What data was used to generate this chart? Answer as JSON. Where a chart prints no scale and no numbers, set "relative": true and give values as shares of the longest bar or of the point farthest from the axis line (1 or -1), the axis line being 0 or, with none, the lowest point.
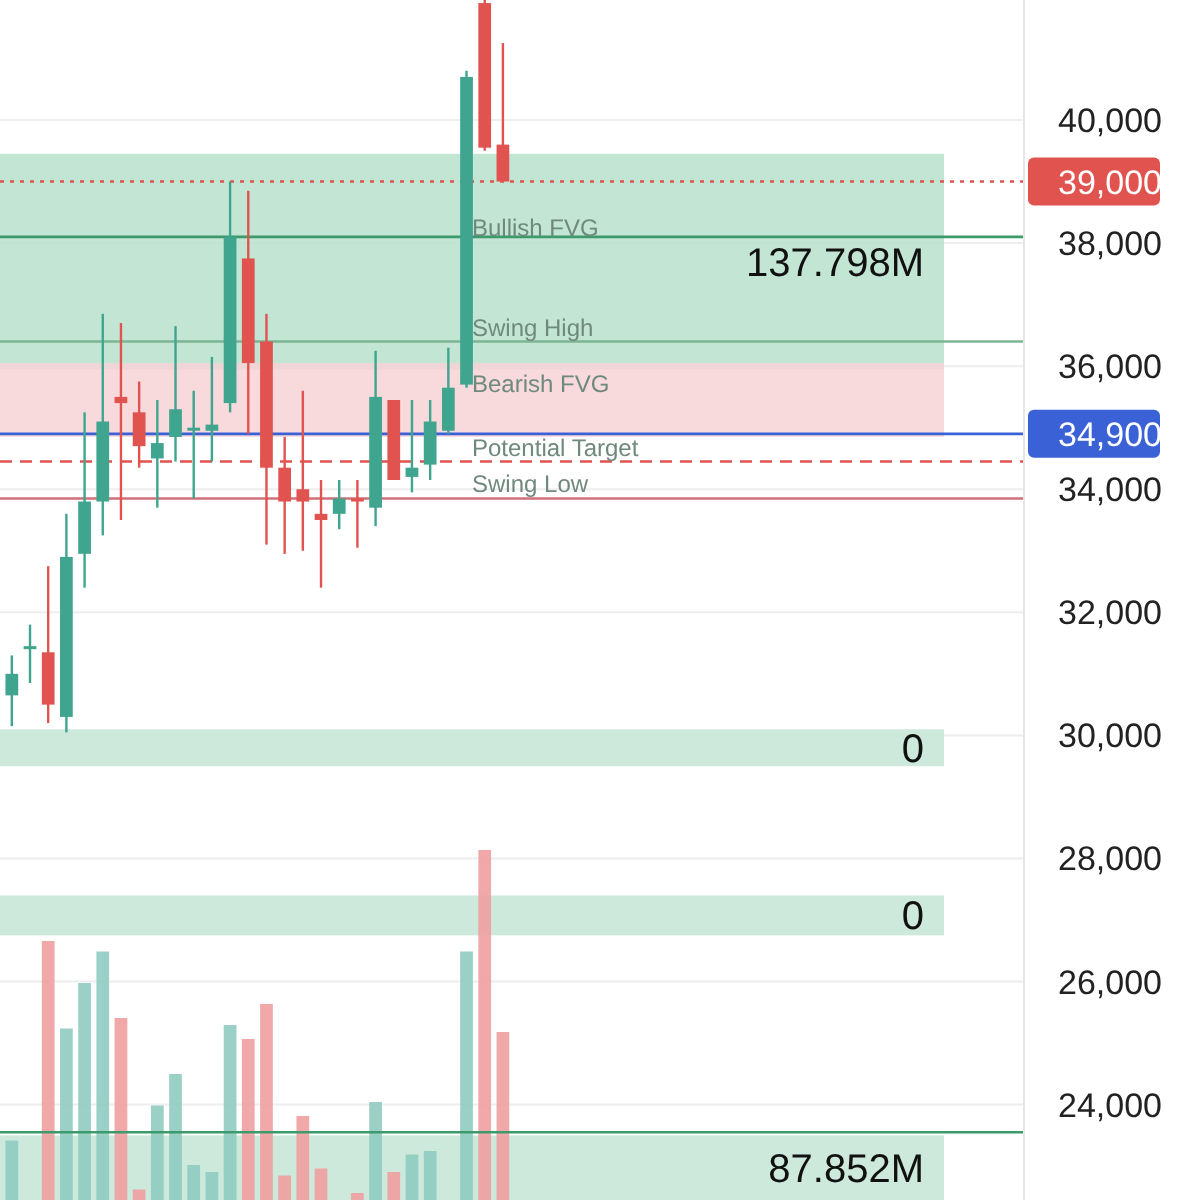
{
  "chart_data": [
    {
      "type": "candlestick",
      "categories": [
        null,
        null,
        null,
        null,
        null,
        null,
        null,
        null,
        null,
        null,
        null,
        null,
        null,
        null,
        null,
        null,
        null,
        null,
        null,
        null,
        null,
        null,
        null,
        null,
        null,
        null,
        null,
        null,
        null,
        null,
        null,
        null,
        null,
        null,
        null,
        null,
        null,
        null,
        null,
        null,
        null,
        null,
        null,
        null,
        null,
        null,
        null,
        null,
        null,
        null,
        null,
        null,
        null,
        null,
        null,
        null
      ],
      "ohlc": [
        [
          30650,
          31300,
          30150,
          31000
        ],
        [
          31450,
          31800,
          30850,
          31450
        ],
        [
          31350,
          32750,
          30200,
          30500
        ],
        [
          30300,
          33600,
          30050,
          32900
        ],
        [
          32950,
          35250,
          32400,
          33800
        ],
        [
          33800,
          36850,
          33250,
          35100
        ],
        [
          35500,
          36700,
          33500,
          35400
        ],
        [
          35250,
          35750,
          34350,
          34700
        ],
        [
          34500,
          35450,
          33700,
          34750
        ],
        [
          34850,
          36650,
          34450,
          35300
        ],
        [
          35000,
          35600,
          33850,
          35000
        ],
        [
          34950,
          36150,
          34450,
          35050
        ],
        [
          35400,
          39000,
          35250,
          38100
        ],
        [
          37750,
          38850,
          34900,
          36050
        ],
        [
          36400,
          36850,
          33100,
          34350
        ],
        [
          34350,
          34850,
          32950,
          33800
        ],
        [
          34000,
          35600,
          33000,
          33800
        ],
        [
          33600,
          34150,
          32400,
          33500
        ],
        [
          33600,
          34150,
          33350,
          33850
        ],
        [
          33850,
          34150,
          33050,
          33800
        ],
        [
          33700,
          36250,
          33400,
          35500
        ],
        [
          35450,
          35450,
          34150,
          34150
        ],
        [
          34200,
          35450,
          33950,
          34350
        ],
        [
          34400,
          35450,
          34150,
          35100
        ],
        [
          34950,
          36300,
          34900,
          35650
        ],
        [
          35700,
          40800,
          35650,
          40700
        ],
        [
          41900,
          41950,
          39500,
          39550
        ],
        [
          39600,
          41250,
          39000,
          39000
        ],
        null,
        null,
        null,
        null,
        null,
        null,
        null,
        null,
        null,
        null,
        null,
        null,
        null,
        null,
        null,
        null,
        null,
        null,
        null,
        null,
        null,
        null,
        null,
        null,
        null,
        null,
        null,
        null
      ],
      "ylim": [
        22450,
        41950
      ],
      "yticks": [
        {
          "value": 24000,
          "label": "24,000"
        },
        {
          "value": 26000,
          "label": "26,000"
        },
        {
          "value": 28000,
          "label": "28,000"
        },
        {
          "value": 30000,
          "label": "30,000"
        },
        {
          "value": 32000,
          "label": "32,000"
        },
        {
          "value": 34000,
          "label": "34,000"
        },
        {
          "value": 36000,
          "label": "36,000"
        },
        {
          "value": 38000,
          "label": "38,000"
        },
        {
          "value": 40000,
          "label": "40,000"
        }
      ],
      "grid": "y",
      "tick_labels": "y",
      "bands": [
        {
          "axis": "y",
          "from": 35950,
          "to": 39450,
          "label": "137.798M",
          "color": "#b9e0cd"
        },
        {
          "axis": "y",
          "from": 34850,
          "to": 36050,
          "color": "#f7d2d6"
        },
        {
          "axis": "y",
          "from": 29500,
          "to": 30100,
          "label": "0",
          "color": "#c4e5d6"
        },
        {
          "axis": "y",
          "from": 26750,
          "to": 27400,
          "label": "0",
          "color": "#c4e5d6"
        },
        {
          "axis": "y",
          "from": 22450,
          "to": 23500,
          "label": "87.852M",
          "color": "#c4e5d6"
        }
      ],
      "ref_lines": [
        {
          "axis": "y",
          "value": 39000,
          "label": "39,000",
          "color": "#e0534f",
          "line_style": "dotted"
        },
        {
          "axis": "y",
          "value": 34900,
          "label": "34,900",
          "color": "#3a62d6",
          "line_style": "solid"
        },
        {
          "axis": "y",
          "value": 38100,
          "color": "#3d9a6a",
          "line_style": "solid"
        },
        {
          "axis": "y",
          "value": 23550,
          "color": "#3d9a6a",
          "line_style": "solid"
        },
        {
          "axis": "y",
          "value": 36400,
          "color": "#7bb594",
          "line_style": "solid"
        },
        {
          "axis": "y",
          "value": 33850,
          "color": "#d07078",
          "line_style": "solid"
        },
        {
          "axis": "y",
          "value": 34450,
          "color": "#e0534f",
          "line_style": "dashed"
        }
      ],
      "annotations": [
        "Bullish FVG",
        "Bearish FVG",
        {
          "text": "Swing High",
          "y": 36400
        },
        {
          "text": "Potential Target",
          "y": 34450
        },
        {
          "text": "Swing Low",
          "y": 33850
        }
      ]
    },
    {
      "type": "bar",
      "relative": true,
      "categories": [
        null,
        null,
        null,
        null,
        null,
        null,
        null,
        null,
        null,
        null,
        null,
        null,
        null,
        null,
        null,
        null,
        null,
        null,
        null,
        null,
        null,
        null,
        null,
        null,
        null,
        null,
        null,
        null,
        null,
        null,
        null,
        null,
        null,
        null,
        null,
        null,
        null,
        null,
        null,
        null,
        null,
        null,
        null,
        null,
        null,
        null,
        null,
        null,
        null,
        null,
        null,
        null,
        null,
        null,
        null,
        null
      ],
      "values": [
        0.17,
        null,
        0.74,
        0.49,
        0.62,
        0.71,
        0.52,
        0.03,
        0.27,
        0.36,
        0.1,
        0.08,
        0.5,
        0.46,
        0.56,
        0.07,
        0.24,
        0.09,
        null,
        0.02,
        0.28,
        0.08,
        0.13,
        0.14,
        null,
        0.71,
        1,
        0.48,
        null,
        null,
        null,
        null,
        null,
        null,
        null,
        null,
        null,
        null,
        null,
        null,
        null,
        null,
        null,
        null,
        null,
        null,
        null,
        null,
        null,
        null,
        null,
        null,
        null,
        null,
        null,
        null
      ],
      "colors": [
        "#8fcbbf",
        null,
        "#ee9f9f",
        "#8fcbbf",
        "#8fcbbf",
        "#8fcbbf",
        "#ee9f9f",
        "#ee9f9f",
        "#8fcbbf",
        "#8fcbbf",
        "#8fcbbf",
        "#8fcbbf",
        "#8fcbbf",
        "#ee9f9f",
        "#ee9f9f",
        "#ee9f9f",
        "#ee9f9f",
        "#ee9f9f",
        null,
        "#ee9f9f",
        "#8fcbbf",
        "#ee9f9f",
        "#8fcbbf",
        "#8fcbbf",
        null,
        "#8fcbbf",
        "#ee9f9f",
        "#ee9f9f",
        null,
        null,
        null,
        null,
        null,
        null,
        null,
        null,
        null,
        null,
        null,
        null,
        null,
        null,
        null,
        null,
        null,
        null,
        null,
        null,
        null,
        null,
        null,
        null,
        null,
        null,
        null,
        null
      ]
    }
  ]
}
